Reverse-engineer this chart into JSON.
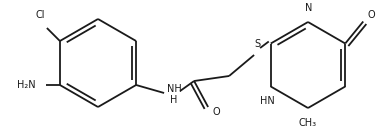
{
  "bg_color": "#ffffff",
  "line_color": "#1a1a1a",
  "text_color": "#1a1a1a",
  "label_Cl": "Cl",
  "label_NH2": "H₂N",
  "label_NH_h": "NH",
  "label_NH_newline": "H",
  "label_O1": "O",
  "label_S": "S",
  "label_HN": "HN",
  "label_O2": "O",
  "label_N": "N",
  "label_CH3": "CH₃",
  "figsize": [
    3.77,
    1.31
  ],
  "dpi": 100,
  "lw": 1.3,
  "fontsize": 7.0
}
